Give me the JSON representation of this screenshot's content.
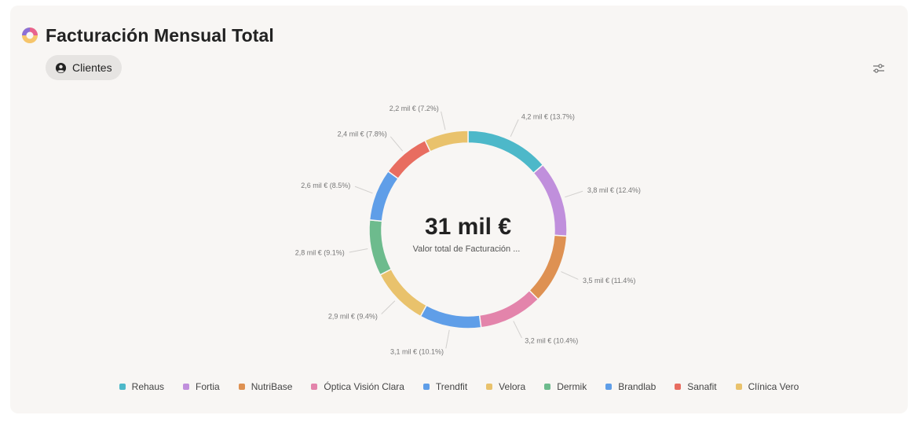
{
  "header": {
    "title": "Facturación Mensual Total",
    "chip_label": "Clientes"
  },
  "icons": {
    "title_icon": "donut-chart-icon",
    "chip_icon": "user-circle-icon",
    "settings_icon": "sliders-icon"
  },
  "chart_data": {
    "type": "pie",
    "center_value": "31 mil €",
    "center_caption": "Valor total de Facturación ...",
    "slices": [
      {
        "name": "Rehaus",
        "value": 4.2,
        "label": "4,2 mil € (13.7%)",
        "color": "#4db8c9"
      },
      {
        "name": "Fortia",
        "value": 3.8,
        "label": "3,8 mil € (12.4%)",
        "color": "#c08fdc"
      },
      {
        "name": "NutriBase",
        "value": 3.5,
        "label": "3,5 mil € (11.4%)",
        "color": "#de9152"
      },
      {
        "name": "Óptica Visión Clara",
        "value": 3.2,
        "label": "3,2 mil € (10.4%)",
        "color": "#e384ab"
      },
      {
        "name": "Trendfit",
        "value": 3.1,
        "label": "3,1 mil € (10.1%)",
        "color": "#5f9ee8"
      },
      {
        "name": "Velora",
        "value": 2.9,
        "label": "2,9 mil € (9.4%)",
        "color": "#e9c26c"
      },
      {
        "name": "Dermik",
        "value": 2.8,
        "label": "2,8 mil € (9.1%)",
        "color": "#6dbb8d"
      },
      {
        "name": "Brandlab",
        "value": 2.6,
        "label": "2,6 mil € (8.5%)",
        "color": "#5f9ee8"
      },
      {
        "name": "Sanafit",
        "value": 2.4,
        "label": "2,4 mil € (7.8%)",
        "color": "#e86d60"
      },
      {
        "name": "Clínica Vero",
        "value": 2.2,
        "label": "2,2 mil € (7.2%)",
        "color": "#e9c26c"
      }
    ]
  }
}
